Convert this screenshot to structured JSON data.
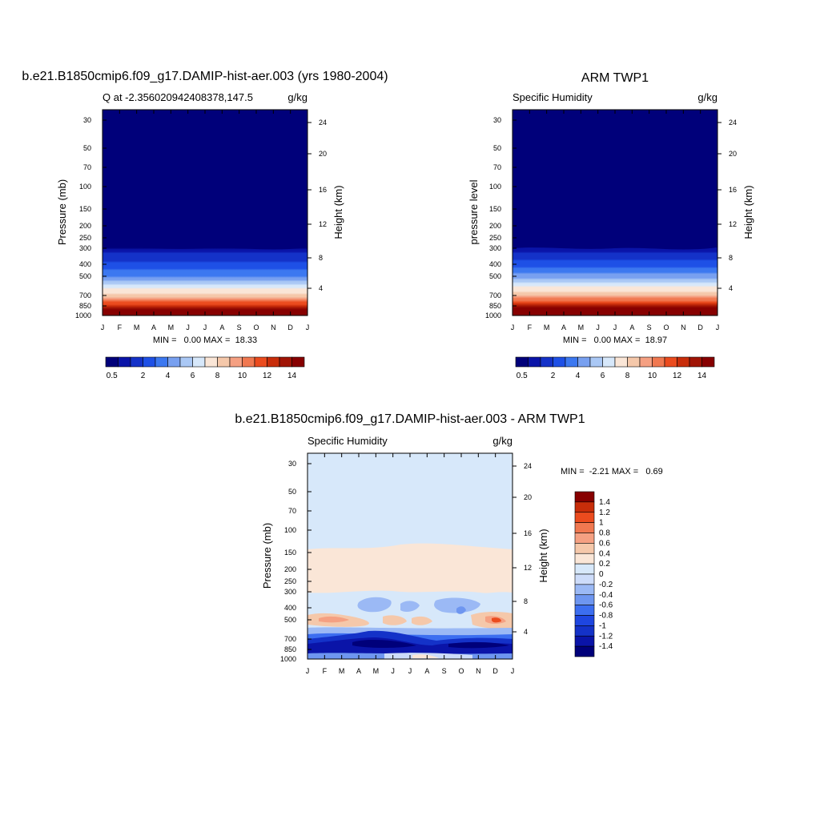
{
  "chart_data": [
    {
      "type": "heatmap",
      "title": "b.e21.B1850cmip6.f09_g17.DAMIP-hist-aer.003 (yrs 1980-2004)",
      "subtitle_left": "Q at -2.356020942408378,147.5",
      "subtitle_right": "g/kg",
      "ylabel": "Pressure (mb)",
      "ylabel_right": "Height (km)",
      "x_ticklabels": [
        "J",
        "F",
        "M",
        "A",
        "M",
        "J",
        "J",
        "A",
        "S",
        "O",
        "N",
        "D",
        "J"
      ],
      "y_ticklabels": [
        "30",
        "50",
        "70",
        "100",
        "150",
        "200",
        "250",
        "300",
        "400",
        "500",
        "700",
        "850",
        "1000"
      ],
      "y_right_ticklabels": [
        "24",
        "20",
        "16",
        "12",
        "8",
        "4"
      ],
      "stats": "MIN =   0.00 MAX =  18.33",
      "colorbar_labels": [
        "0.5",
        "2",
        "4",
        "6",
        "8",
        "10",
        "12",
        "14"
      ],
      "profile_levels_mb": [
        1000,
        850,
        700,
        500,
        400,
        300,
        200
      ],
      "profile_values": [
        17.5,
        12.5,
        8.5,
        4.0,
        2.2,
        0.5,
        0.02
      ],
      "value_range": [
        0,
        18.33
      ]
    },
    {
      "type": "heatmap",
      "title": "ARM TWP1",
      "subtitle_left": "Specific Humidity",
      "subtitle_right": "g/kg",
      "ylabel": "pressure level",
      "ylabel_right": "Height (km)",
      "x_ticklabels": [
        "J",
        "F",
        "M",
        "A",
        "M",
        "J",
        "J",
        "A",
        "S",
        "O",
        "N",
        "D",
        "J"
      ],
      "y_ticklabels": [
        "30",
        "50",
        "70",
        "100",
        "150",
        "200",
        "250",
        "300",
        "400",
        "500",
        "700",
        "850",
        "1000"
      ],
      "y_right_ticklabels": [
        "24",
        "20",
        "16",
        "12",
        "8",
        "4"
      ],
      "stats": "MIN =   0.00 MAX =  18.97",
      "colorbar_labels": [
        "0.5",
        "2",
        "4",
        "6",
        "8",
        "10",
        "12",
        "14"
      ],
      "profile_levels_mb": [
        1000,
        850,
        700,
        500,
        400,
        300,
        200
      ],
      "profile_values": [
        18.0,
        13.0,
        9.0,
        4.5,
        2.5,
        0.6,
        0.02
      ],
      "value_range": [
        0,
        18.97
      ]
    },
    {
      "type": "heatmap",
      "title": "b.e21.B1850cmip6.f09_g17.DAMIP-hist-aer.003 - ARM TWP1",
      "subtitle_left": "Specific Humidity",
      "subtitle_right": "g/kg",
      "ylabel": "Pressure (mb)",
      "ylabel_right": "Height (km)",
      "x_ticklabels": [
        "J",
        "F",
        "M",
        "A",
        "M",
        "J",
        "J",
        "A",
        "S",
        "O",
        "N",
        "D",
        "J"
      ],
      "y_ticklabels": [
        "30",
        "50",
        "70",
        "100",
        "150",
        "200",
        "250",
        "300",
        "400",
        "500",
        "700",
        "850",
        "1000"
      ],
      "y_right_ticklabels": [
        "24",
        "20",
        "16",
        "12",
        "8",
        "4"
      ],
      "stats": "MIN =  -2.21 MAX =   0.69",
      "colorbar_labels": [
        "1.4",
        "1.2",
        "1",
        "0.8",
        "0.6",
        "0.4",
        "0.2",
        "0",
        "-0.2",
        "-0.4",
        "-0.6",
        "-0.8",
        "-1",
        "-1.2",
        "-1.4"
      ],
      "value_range": [
        -2.21,
        0.69
      ]
    }
  ],
  "colors": {
    "humidity_scale": [
      "#00007a",
      "#0a14a8",
      "#1432c8",
      "#1e50e6",
      "#3c78f0",
      "#78a0f0",
      "#aac8f5",
      "#d7e8fa",
      "#fae6d7",
      "#f5c8aa",
      "#f5a082",
      "#f07850",
      "#eb4b1e",
      "#c82d0a",
      "#a01405",
      "#870000"
    ],
    "difference_scale": [
      "#00007a",
      "#0a14a8",
      "#1432c8",
      "#1e46e0",
      "#3c6ef0",
      "#6e96f0",
      "#9bb9f5",
      "#cddcfa",
      "#d7e8fa",
      "#fae6d7",
      "#f5c8aa",
      "#f5a082",
      "#f07850",
      "#eb4b1e",
      "#c82d0a",
      "#870000"
    ]
  }
}
